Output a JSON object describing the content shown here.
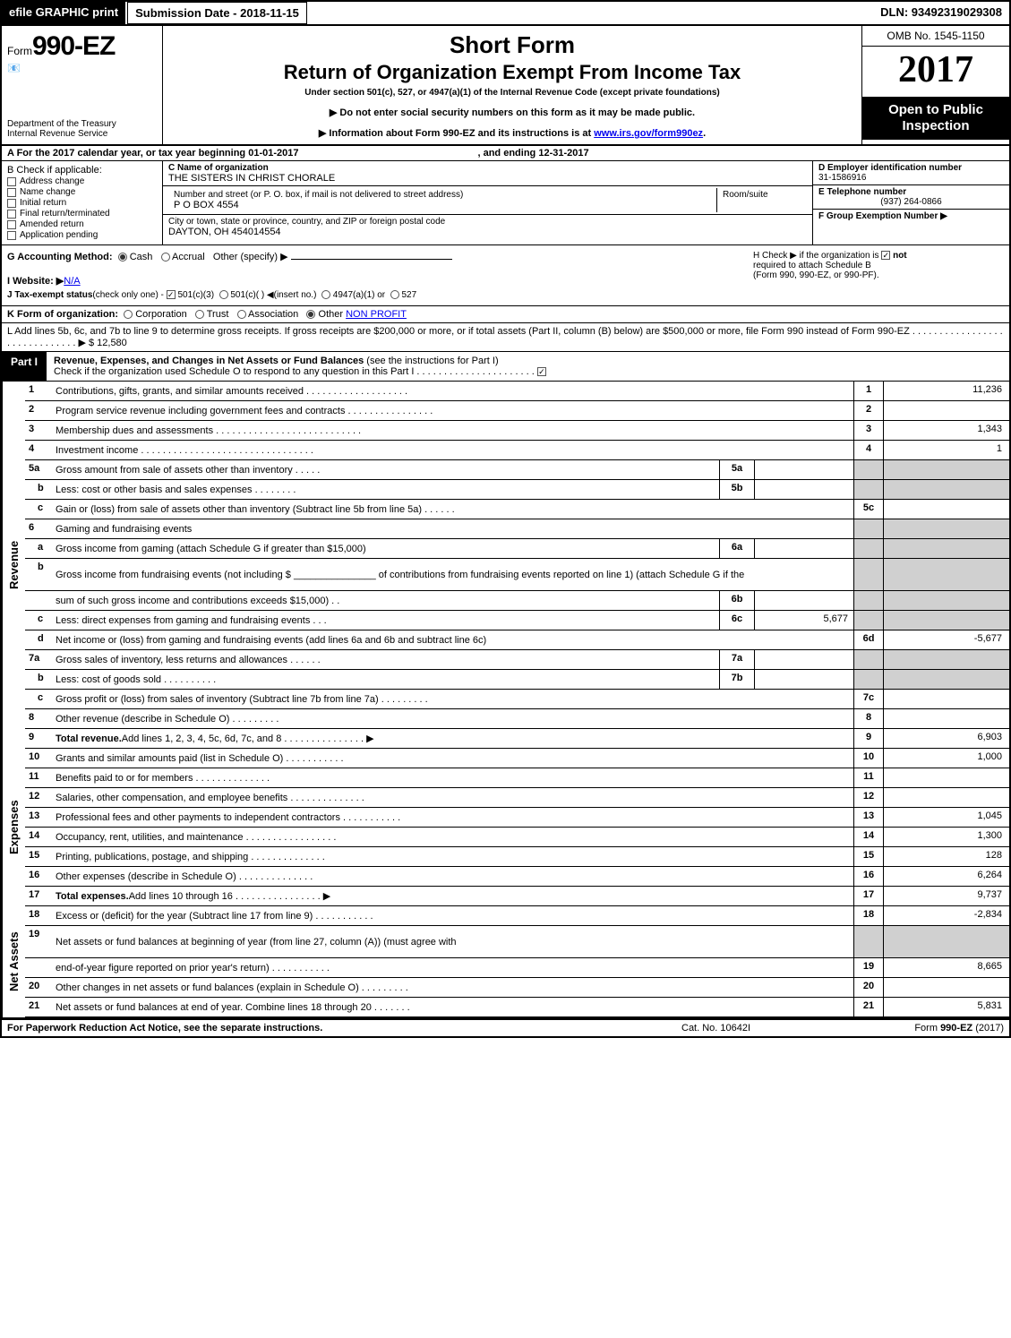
{
  "topbar": {
    "efile": "efile GRAPHIC print",
    "submission": "Submission Date - 2018-11-15",
    "dln": "DLN: 93492319029308"
  },
  "header": {
    "form_prefix": "Form",
    "form_num": "990-EZ",
    "dept1": "Department of the Treasury",
    "dept2": "Internal Revenue Service",
    "title1": "Short Form",
    "title2": "Return of Organization Exempt From Income Tax",
    "subtitle": "Under section 501(c), 527, or 4947(a)(1) of the Internal Revenue Code (except private foundations)",
    "warn1": "▶ Do not enter social security numbers on this form as it may be made public.",
    "warn2_pre": "▶ Information about Form 990-EZ and its instructions is at ",
    "warn2_link": "www.irs.gov/form990ez",
    "omb": "OMB No. 1545-1150",
    "year": "2017",
    "open": "Open to Public Inspection"
  },
  "line_a": {
    "text_pre": "A   For the 2017 calendar year, or tax year beginning ",
    "begin": "01-01-2017",
    "mid": ", and ending ",
    "end": "12-31-2017"
  },
  "box_b": {
    "title": "B  Check if applicable:",
    "opts": [
      "Address change",
      "Name change",
      "Initial return",
      "Final return/terminated",
      "Amended return",
      "Application pending"
    ]
  },
  "box_c": {
    "c_label": "C Name of organization",
    "c_val": "THE SISTERS IN CHRIST CHORALE",
    "addr_label": "Number and street (or P. O. box, if mail is not delivered to street address)",
    "addr_val": "P O BOX 4554",
    "room_label": "Room/suite",
    "city_label": "City or town, state or province, country, and ZIP or foreign postal code",
    "city_val": "DAYTON, OH  454014554"
  },
  "box_def": {
    "d_label": "D Employer identification number",
    "d_val": "31-1586916",
    "e_label": "E Telephone number",
    "e_val": "(937) 264-0866",
    "f_label": "F Group Exemption Number  ▶"
  },
  "box_g": {
    "g_label": "G Accounting Method:",
    "g_cash": "Cash",
    "g_accrual": "Accrual",
    "g_other": "Other (specify) ▶",
    "i_label": "I Website: ▶",
    "i_val": "N/A",
    "j_label": "J Tax-exempt status",
    "j_small": "(check only one) - ",
    "j_opts": [
      "501(c)(3)",
      "501(c)(  ) ◀(insert no.)",
      "4947(a)(1) or",
      "527"
    ],
    "h_text1": "H   Check ▶        if the organization is ",
    "h_not": "not",
    "h_text2": "required to attach Schedule B",
    "h_text3": "(Form 990, 990-EZ, or 990-PF)."
  },
  "line_k": {
    "label": "K Form of organization:",
    "opts": [
      "Corporation",
      "Trust",
      "Association",
      "Other"
    ],
    "other_val": "NON PROFIT"
  },
  "line_l": {
    "text": "L Add lines 5b, 6c, and 7b to line 9 to determine gross receipts. If gross receipts are $200,000 or more, or if total assets (Part II, column (B) below) are $500,000 or more, file Form 990 instead of Form 990-EZ  .  .  .  .  .  .  .  .  .  .  .  .  .  .  .  .  .  .  .  .  .  .  .  .  .  .  .  .  .  .  ▶ $ 12,580"
  },
  "part1": {
    "tag": "Part I",
    "title": "Revenue, Expenses, and Changes in Net Assets or Fund Balances",
    "sub": " (see the instructions for Part I)",
    "check_line": "Check if the organization used Schedule O to respond to any question in this Part I .  .  .  .  .  .  .  .  .  .  .  .  .  .  .  .  .  .  .  .  .  .  "
  },
  "sections": {
    "revenue": "Revenue",
    "expenses": "Expenses",
    "netassets": "Net Assets"
  },
  "rows": [
    {
      "n": "1",
      "d": "Contributions, gifts, grants, and similar amounts received  .  .  .  .  .  .  .  .  .  .  .  .  .  .  .  .  .  .  .",
      "rn": "1",
      "rv": "11,236"
    },
    {
      "n": "2",
      "d": "Program service revenue including government fees and contracts  .  .  .  .  .  .  .  .  .  .  .  .  .  .  .  .",
      "rn": "2",
      "rv": ""
    },
    {
      "n": "3",
      "d": "Membership dues and assessments  .  .  .  .  .  .  .  .  .  .  .  .  .  .  .  .  .  .  .  .  .  .  .  .  .  .  .",
      "rn": "3",
      "rv": "1,343"
    },
    {
      "n": "4",
      "d": "Investment income  .  .  .  .  .  .  .  .  .  .  .  .  .  .  .  .  .  .  .  .  .  .  .  .  .  .  .  .  .  .  .  .",
      "rn": "4",
      "rv": "1"
    },
    {
      "n": "5a",
      "d": "Gross amount from sale of assets other than inventory  .  .  .  .  .",
      "mb": "5a",
      "mv": "",
      "shade": true
    },
    {
      "n": "b",
      "sub": true,
      "d": "Less: cost or other basis and sales expenses  .  .  .  .  .  .  .  .",
      "mb": "5b",
      "mv": "",
      "shade": true
    },
    {
      "n": "c",
      "sub": true,
      "d": "Gain or (loss) from sale of assets other than inventory (Subtract line 5b from line 5a)            .    .    .    .    .    .",
      "rn": "5c",
      "rv": ""
    },
    {
      "n": "6",
      "d": "Gaming and fundraising events",
      "shade": true,
      "noright": true
    },
    {
      "n": "a",
      "sub": true,
      "d": "Gross income from gaming (attach Schedule G if greater than $15,000)",
      "mb": "6a",
      "mv": "",
      "shade": true
    },
    {
      "n": "b",
      "sub": true,
      "tall": true,
      "d": "Gross income from fundraising events (not including $ _______________ of contributions from fundraising events reported on line 1) (attach Schedule G if the",
      "shade": true,
      "noright": true
    },
    {
      "n": "",
      "d": "sum of such gross income and contributions exceeds $15,000)           .    .",
      "mb": "6b",
      "mv": "",
      "shade": true
    },
    {
      "n": "c",
      "sub": true,
      "d": "Less: direct expenses from gaming and fundraising events           .    .    .",
      "mb": "6c",
      "mv": "5,677",
      "shade": true
    },
    {
      "n": "d",
      "sub": true,
      "d": "Net income or (loss) from gaming and fundraising events (add lines 6a and 6b and subtract line 6c)",
      "rn": "6d",
      "rv": "-5,677"
    },
    {
      "n": "7a",
      "d": "Gross sales of inventory, less returns and allowances           .    .    .    .    .    .",
      "mb": "7a",
      "mv": "",
      "shade": true
    },
    {
      "n": "b",
      "sub": true,
      "d": "Less: cost of goods sold                              .    .    .    .    .    .    .    .    .    .",
      "mb": "7b",
      "mv": "",
      "shade": true
    },
    {
      "n": "c",
      "sub": true,
      "d": "Gross profit or (loss) from sales of inventory (Subtract line 7b from line 7a)            .    .    .    .    .    .    .    .    .",
      "rn": "7c",
      "rv": ""
    },
    {
      "n": "8",
      "d": "Other revenue (describe in Schedule O)                                        .    .    .    .    .    .    .    .    .",
      "rn": "8",
      "rv": ""
    },
    {
      "n": "9",
      "d": "Total revenue. Add lines 1, 2, 3, 4, 5c, 6d, 7c, and 8        .    .    .    .    .    .    .    .    .    .    .    .    .    .    .  ▶",
      "bold": true,
      "rn": "9",
      "rv": "6,903"
    }
  ],
  "exp_rows": [
    {
      "n": "10",
      "d": "Grants and similar amounts paid (list in Schedule O)                    .    .    .    .    .    .    .    .    .    .    .",
      "rn": "10",
      "rv": "1,000"
    },
    {
      "n": "11",
      "d": "Benefits paid to or for members                                  .    .    .    .    .    .    .    .    .    .    .    .    .    .",
      "rn": "11",
      "rv": ""
    },
    {
      "n": "12",
      "d": "Salaries, other compensation, and employee benefits            .    .    .    .    .    .    .    .    .    .    .    .    .    .",
      "rn": "12",
      "rv": ""
    },
    {
      "n": "13",
      "d": "Professional fees and other payments to independent contractors       .    .    .    .    .    .    .    .    .    .    .",
      "rn": "13",
      "rv": "1,045"
    },
    {
      "n": "14",
      "d": "Occupancy, rent, utilities, and maintenance         .    .    .    .    .    .    .    .    .    .    .    .    .    .    .    .    .",
      "rn": "14",
      "rv": "1,300"
    },
    {
      "n": "15",
      "d": "Printing, publications, postage, and shipping                      .    .    .    .    .    .    .    .    .    .    .    .    .    .",
      "rn": "15",
      "rv": "128"
    },
    {
      "n": "16",
      "d": "Other expenses (describe in Schedule O)                          .    .    .    .    .    .    .    .    .    .    .    .    .    .",
      "rn": "16",
      "rv": "6,264"
    },
    {
      "n": "17",
      "d": "Total expenses. Add lines 10 through 16            .    .    .    .    .    .    .    .    .    .    .    .    .    .    .    .  ▶",
      "bold": true,
      "rn": "17",
      "rv": "9,737"
    }
  ],
  "na_rows": [
    {
      "n": "18",
      "d": "Excess or (deficit) for the year (Subtract line 17 from line 9)             .    .    .    .    .    .    .    .    .    .    .",
      "rn": "18",
      "rv": "-2,834"
    },
    {
      "n": "19",
      "tall": true,
      "d": "Net assets or fund balances at beginning of year (from line 27, column (A)) (must agree with",
      "shade": true,
      "noright": true
    },
    {
      "n": "",
      "d": "end-of-year figure reported on prior year's return)                     .    .    .    .    .    .    .    .    .    .    .",
      "rn": "19",
      "rv": "8,665"
    },
    {
      "n": "20",
      "d": "Other changes in net assets or fund balances (explain in Schedule O)       .    .    .    .    .    .    .    .    .",
      "rn": "20",
      "rv": ""
    },
    {
      "n": "21",
      "d": "Net assets or fund balances at end of year. Combine lines 18 through 20           .    .    .    .    .    .    .",
      "rn": "21",
      "rv": "5,831"
    }
  ],
  "footer": {
    "left": "For Paperwork Reduction Act Notice, see the separate instructions.",
    "mid": "Cat. No. 10642I",
    "right_pre": "Form ",
    "right_bold": "990-EZ",
    "right_post": " (2017)"
  }
}
